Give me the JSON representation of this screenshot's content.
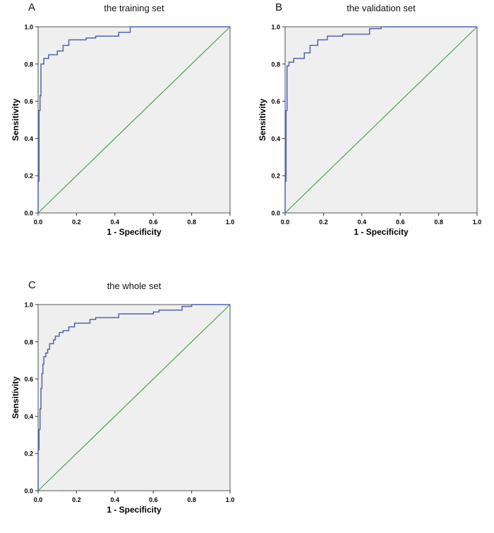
{
  "figure": {
    "panels": [
      {
        "label": "A",
        "title": "the training set",
        "xlabel": "1 - Specificity",
        "ylabel": "Sensitivity"
      },
      {
        "label": "B",
        "title": "the validation set",
        "xlabel": "1 - Specificity",
        "ylabel": "Sensitivity"
      },
      {
        "label": "C",
        "title": "the whole set",
        "xlabel": "1 - Specificity",
        "ylabel": "Sensitivity"
      }
    ]
  },
  "style": {
    "curve_color": "#4f63ad",
    "reference_color": "#44a649",
    "plot_bg": "#f0efef",
    "plot_border": "#555555",
    "tick_color": "#333333"
  },
  "chart_data": [
    {
      "type": "line",
      "title": "the training set",
      "xlabel": "1 - Specificity",
      "ylabel": "Sensitivity",
      "xlim": [
        0,
        1
      ],
      "ylim": [
        0,
        1
      ],
      "xticks": [
        0,
        0.2,
        0.4,
        0.6,
        0.8,
        1
      ],
      "yticks": [
        0,
        0.2,
        0.4,
        0.6,
        0.8,
        1
      ],
      "tick_labels": [
        "0.0",
        "0.2",
        "0.4",
        "0.6",
        "0.8",
        "1.0"
      ],
      "grid": false,
      "legend": "none",
      "series": [
        {
          "name": "ROC curve",
          "color": "#4f63ad",
          "points": [
            [
              0,
              0
            ],
            [
              0,
              0.17
            ],
            [
              0.005,
              0.17
            ],
            [
              0.005,
              0.55
            ],
            [
              0.01,
              0.55
            ],
            [
              0.01,
              0.63
            ],
            [
              0.015,
              0.63
            ],
            [
              0.015,
              0.8
            ],
            [
              0.03,
              0.8
            ],
            [
              0.03,
              0.83
            ],
            [
              0.055,
              0.83
            ],
            [
              0.055,
              0.85
            ],
            [
              0.1,
              0.85
            ],
            [
              0.1,
              0.87
            ],
            [
              0.13,
              0.87
            ],
            [
              0.13,
              0.9
            ],
            [
              0.16,
              0.9
            ],
            [
              0.16,
              0.93
            ],
            [
              0.25,
              0.93
            ],
            [
              0.25,
              0.94
            ],
            [
              0.3,
              0.94
            ],
            [
              0.3,
              0.95
            ],
            [
              0.42,
              0.95
            ],
            [
              0.42,
              0.97
            ],
            [
              0.48,
              0.97
            ],
            [
              0.48,
              1
            ],
            [
              1,
              1
            ]
          ]
        },
        {
          "name": "Reference line",
          "color": "#44a649",
          "points": [
            [
              0,
              0
            ],
            [
              1,
              1
            ]
          ]
        }
      ]
    },
    {
      "type": "line",
      "title": "the validation set",
      "xlabel": "1 - Specificity",
      "ylabel": "Sensitivity",
      "xlim": [
        0,
        1
      ],
      "ylim": [
        0,
        1
      ],
      "xticks": [
        0,
        0.2,
        0.4,
        0.6,
        0.8,
        1
      ],
      "yticks": [
        0,
        0.2,
        0.4,
        0.6,
        0.8,
        1
      ],
      "tick_labels": [
        "0.0",
        "0.2",
        "0.4",
        "0.6",
        "0.8",
        "1.0"
      ],
      "grid": false,
      "legend": "none",
      "series": [
        {
          "name": "ROC curve",
          "color": "#4f63ad",
          "points": [
            [
              0,
              0
            ],
            [
              0,
              0.17
            ],
            [
              0.005,
              0.17
            ],
            [
              0.005,
              0.55
            ],
            [
              0.01,
              0.55
            ],
            [
              0.01,
              0.79
            ],
            [
              0.02,
              0.79
            ],
            [
              0.02,
              0.81
            ],
            [
              0.045,
              0.81
            ],
            [
              0.045,
              0.83
            ],
            [
              0.1,
              0.83
            ],
            [
              0.1,
              0.86
            ],
            [
              0.13,
              0.86
            ],
            [
              0.13,
              0.9
            ],
            [
              0.17,
              0.9
            ],
            [
              0.17,
              0.93
            ],
            [
              0.22,
              0.93
            ],
            [
              0.22,
              0.95
            ],
            [
              0.3,
              0.95
            ],
            [
              0.3,
              0.96
            ],
            [
              0.44,
              0.96
            ],
            [
              0.44,
              0.99
            ],
            [
              0.5,
              0.99
            ],
            [
              0.5,
              1
            ],
            [
              1,
              1
            ]
          ]
        },
        {
          "name": "Reference line",
          "color": "#44a649",
          "points": [
            [
              0,
              0
            ],
            [
              1,
              1
            ]
          ]
        }
      ]
    },
    {
      "type": "line",
      "title": "the whole set",
      "xlabel": "1 - Specificity",
      "ylabel": "Sensitivity",
      "xlim": [
        0,
        1
      ],
      "ylim": [
        0,
        1
      ],
      "xticks": [
        0,
        0.2,
        0.4,
        0.6,
        0.8,
        1
      ],
      "yticks": [
        0,
        0.2,
        0.4,
        0.6,
        0.8,
        1
      ],
      "tick_labels": [
        "0.0",
        "0.2",
        "0.4",
        "0.6",
        "0.8",
        "1.0"
      ],
      "grid": false,
      "legend": "none",
      "series": [
        {
          "name": "ROC curve",
          "color": "#4f63ad",
          "points": [
            [
              0,
              0
            ],
            [
              0,
              0.22
            ],
            [
              0.005,
              0.22
            ],
            [
              0.005,
              0.33
            ],
            [
              0.01,
              0.33
            ],
            [
              0.01,
              0.44
            ],
            [
              0.015,
              0.44
            ],
            [
              0.015,
              0.55
            ],
            [
              0.02,
              0.55
            ],
            [
              0.02,
              0.63
            ],
            [
              0.025,
              0.63
            ],
            [
              0.025,
              0.68
            ],
            [
              0.03,
              0.68
            ],
            [
              0.03,
              0.72
            ],
            [
              0.04,
              0.72
            ],
            [
              0.04,
              0.74
            ],
            [
              0.05,
              0.74
            ],
            [
              0.05,
              0.76
            ],
            [
              0.06,
              0.76
            ],
            [
              0.06,
              0.79
            ],
            [
              0.08,
              0.79
            ],
            [
              0.08,
              0.81
            ],
            [
              0.09,
              0.81
            ],
            [
              0.09,
              0.83
            ],
            [
              0.11,
              0.83
            ],
            [
              0.11,
              0.85
            ],
            [
              0.13,
              0.85
            ],
            [
              0.13,
              0.86
            ],
            [
              0.16,
              0.86
            ],
            [
              0.16,
              0.88
            ],
            [
              0.19,
              0.88
            ],
            [
              0.19,
              0.9
            ],
            [
              0.27,
              0.9
            ],
            [
              0.27,
              0.92
            ],
            [
              0.3,
              0.92
            ],
            [
              0.3,
              0.93
            ],
            [
              0.42,
              0.93
            ],
            [
              0.42,
              0.95
            ],
            [
              0.6,
              0.95
            ],
            [
              0.6,
              0.96
            ],
            [
              0.63,
              0.96
            ],
            [
              0.63,
              0.97
            ],
            [
              0.75,
              0.97
            ],
            [
              0.75,
              0.99
            ],
            [
              0.8,
              0.99
            ],
            [
              0.8,
              1
            ],
            [
              1,
              1
            ]
          ]
        },
        {
          "name": "Reference line",
          "color": "#44a649",
          "points": [
            [
              0,
              0
            ],
            [
              1,
              1
            ]
          ]
        }
      ]
    }
  ]
}
